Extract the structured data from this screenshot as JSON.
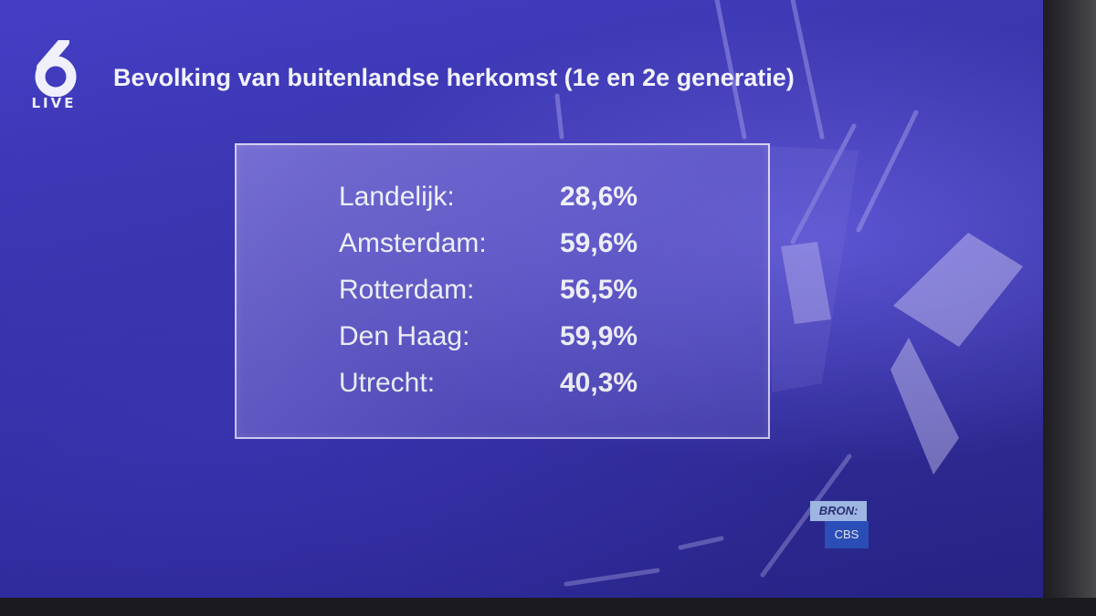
{
  "channel": {
    "logo_number": "6",
    "logo_sub": "LIVE"
  },
  "chart_data": {
    "type": "table",
    "title": "Bevolking van buitenlandse herkomst (1e en 2e generatie)",
    "rows": [
      {
        "label": "Landelijk:",
        "value": 28.6,
        "display": "28,6%"
      },
      {
        "label": "Amsterdam:",
        "value": 59.6,
        "display": "59,6%"
      },
      {
        "label": "Rotterdam:",
        "value": 56.5,
        "display": "56,5%"
      },
      {
        "label": "Den Haag:",
        "value": 59.9,
        "display": "59,9%"
      },
      {
        "label": "Utrecht:",
        "value": 40.3,
        "display": "40,3%"
      }
    ]
  },
  "source": {
    "label": "BRON:",
    "value": "CBS"
  },
  "colors": {
    "background": "#3531b5",
    "panel_border": "#ebe8ff",
    "text": "#f6f6ff",
    "source_label_bg": "#a9c2f2",
    "source_value_bg": "#2c52c4"
  }
}
